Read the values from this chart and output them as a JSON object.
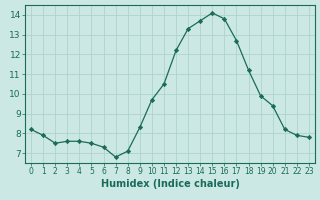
{
  "x": [
    0,
    1,
    2,
    3,
    4,
    5,
    6,
    7,
    8,
    9,
    10,
    11,
    12,
    13,
    14,
    15,
    16,
    17,
    18,
    19,
    20,
    21,
    22,
    23
  ],
  "y": [
    8.2,
    7.9,
    7.5,
    7.6,
    7.6,
    7.5,
    7.3,
    6.8,
    7.1,
    8.3,
    9.7,
    10.5,
    12.2,
    13.3,
    13.7,
    14.1,
    13.8,
    12.7,
    11.2,
    9.9,
    9.4,
    8.2,
    7.9,
    7.8
  ],
  "line_color": "#1a6b5a",
  "marker": "D",
  "marker_size": 2.2,
  "bg_color": "#cce8e4",
  "grid_color": "#aacfca",
  "axis_color": "#1a6b5a",
  "tick_color": "#1a6b5a",
  "xlabel": "Humidex (Indice chaleur)",
  "xlim": [
    -0.5,
    23.5
  ],
  "ylim": [
    6.5,
    14.5
  ],
  "yticks": [
    7,
    8,
    9,
    10,
    11,
    12,
    13,
    14
  ],
  "xticks": [
    0,
    1,
    2,
    3,
    4,
    5,
    6,
    7,
    8,
    9,
    10,
    11,
    12,
    13,
    14,
    15,
    16,
    17,
    18,
    19,
    20,
    21,
    22,
    23
  ],
  "xlabel_fontsize": 7.0,
  "tick_fontsize_x": 5.5,
  "tick_fontsize_y": 6.5
}
